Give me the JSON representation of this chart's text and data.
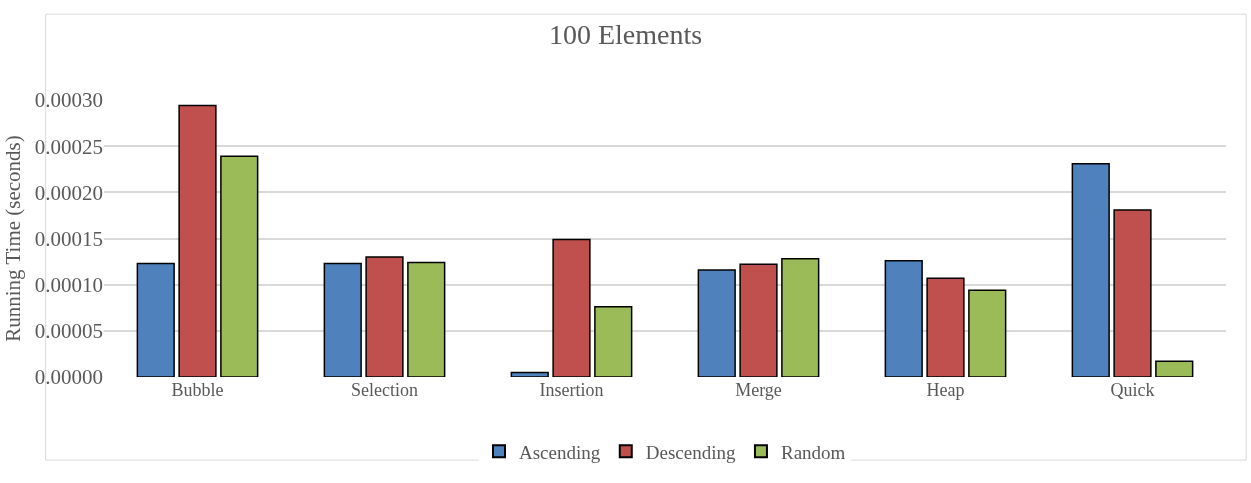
{
  "chart_data": {
    "type": "bar",
    "title": "100 Elements",
    "ylabel": "Running Time (seconds)",
    "categories": [
      "Bubble",
      "Selection",
      "Insertion",
      "Merge",
      "Heap",
      "Quick"
    ],
    "series": [
      {
        "name": "Ascending",
        "color": "#4f81bd",
        "values": [
          0.000123,
          0.000123,
          5e-06,
          0.000116,
          0.000126,
          0.000231
        ]
      },
      {
        "name": "Descending",
        "color": "#c0504d",
        "values": [
          0.000294,
          0.00013,
          0.000149,
          0.000122,
          0.000107,
          0.000181
        ]
      },
      {
        "name": "Random",
        "color": "#9bbb59",
        "values": [
          0.000239,
          0.000124,
          7.6e-05,
          0.000128,
          9.4e-05,
          1.7e-05
        ]
      }
    ],
    "ylim": [
      0,
      0.0003
    ],
    "yticks": [
      {
        "value": 0,
        "label": "0.00000"
      },
      {
        "value": 5e-05,
        "label": "0.00005"
      },
      {
        "value": 0.0001,
        "label": "0.00010"
      },
      {
        "value": 0.00015,
        "label": "0.00015"
      },
      {
        "value": 0.0002,
        "label": "0.00020"
      },
      {
        "value": 0.00025,
        "label": "0.00025"
      },
      {
        "value": 0.0003,
        "label": "0.00030"
      }
    ],
    "grid": "y",
    "legend": "bottom"
  }
}
